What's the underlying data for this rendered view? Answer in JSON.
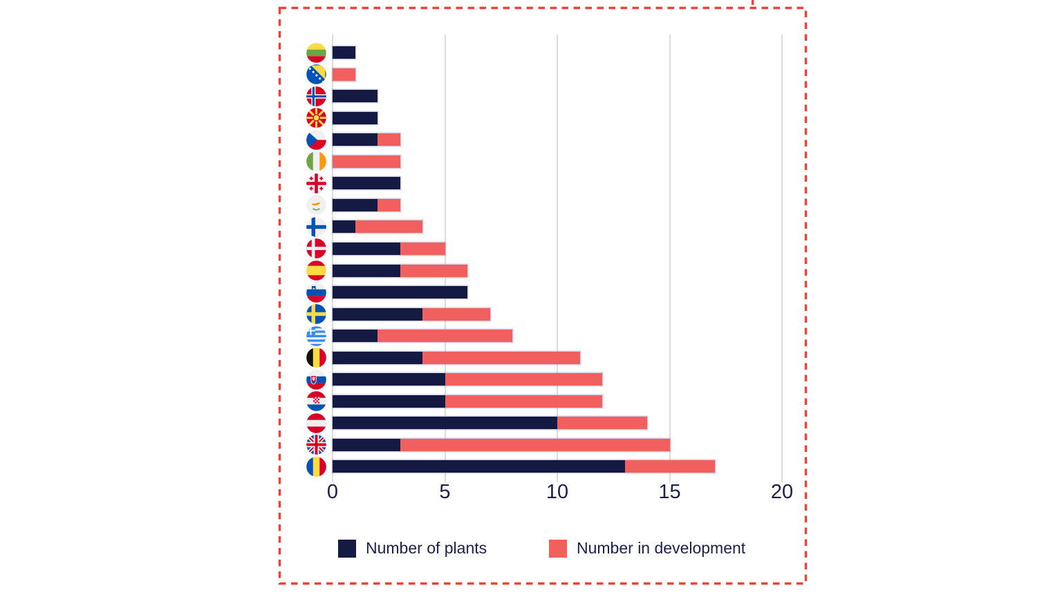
{
  "chart_data": {
    "type": "bar",
    "orientation": "horizontal",
    "stacked": true,
    "categories": [
      "Lithuania",
      "Bosnia and Herzegovina",
      "Norway",
      "North Macedonia",
      "Czech Republic",
      "Ireland",
      "Georgia",
      "Cyprus",
      "Finland",
      "Denmark",
      "Spain",
      "Slovenia",
      "Sweden",
      "Greece",
      "Belgium",
      "Slovakia",
      "Croatia",
      "Austria",
      "United Kingdom",
      "Romania"
    ],
    "category_icons": [
      "flag-lithuania-icon",
      "flag-bosnia-and-herzegovina-icon",
      "flag-norway-icon",
      "flag-north-macedonia-icon",
      "flag-czech-republic-icon",
      "flag-ireland-icon",
      "flag-georgia-icon",
      "flag-cyprus-icon",
      "flag-finland-icon",
      "flag-denmark-icon",
      "flag-spain-icon",
      "flag-slovenia-icon",
      "flag-sweden-icon",
      "flag-greece-icon",
      "flag-belgium-icon",
      "flag-slovakia-icon",
      "flag-croatia-icon",
      "flag-austria-icon",
      "flag-united-kingdom-icon",
      "flag-romania-icon"
    ],
    "series": [
      {
        "name": "Number of plants",
        "color": "#151a43",
        "values": [
          1,
          0,
          2,
          2,
          2,
          0,
          3,
          2,
          1,
          3,
          3,
          6,
          4,
          2,
          4,
          5,
          5,
          10,
          3,
          13
        ]
      },
      {
        "name": "Number in development",
        "color": "#f25f5f",
        "values": [
          0,
          1,
          0,
          0,
          1,
          3,
          0,
          1,
          3,
          2,
          3,
          0,
          3,
          6,
          7,
          7,
          7,
          4,
          12,
          4
        ]
      }
    ],
    "xlim": [
      0,
      20
    ],
    "x_ticks": [
      0,
      5,
      10,
      15,
      20
    ],
    "grid": "vertical",
    "legend_position": "bottom"
  },
  "legend": {
    "items": [
      {
        "label": "Number of plants",
        "color": "#151a43"
      },
      {
        "label": "Number in development",
        "color": "#f25f5f"
      }
    ]
  },
  "colors": {
    "plants": "#151a43",
    "development": "#f25f5f",
    "gridline": "#dcdcdc",
    "axis_text": "#1b1f4e",
    "dashed_border": "#ee4237"
  }
}
